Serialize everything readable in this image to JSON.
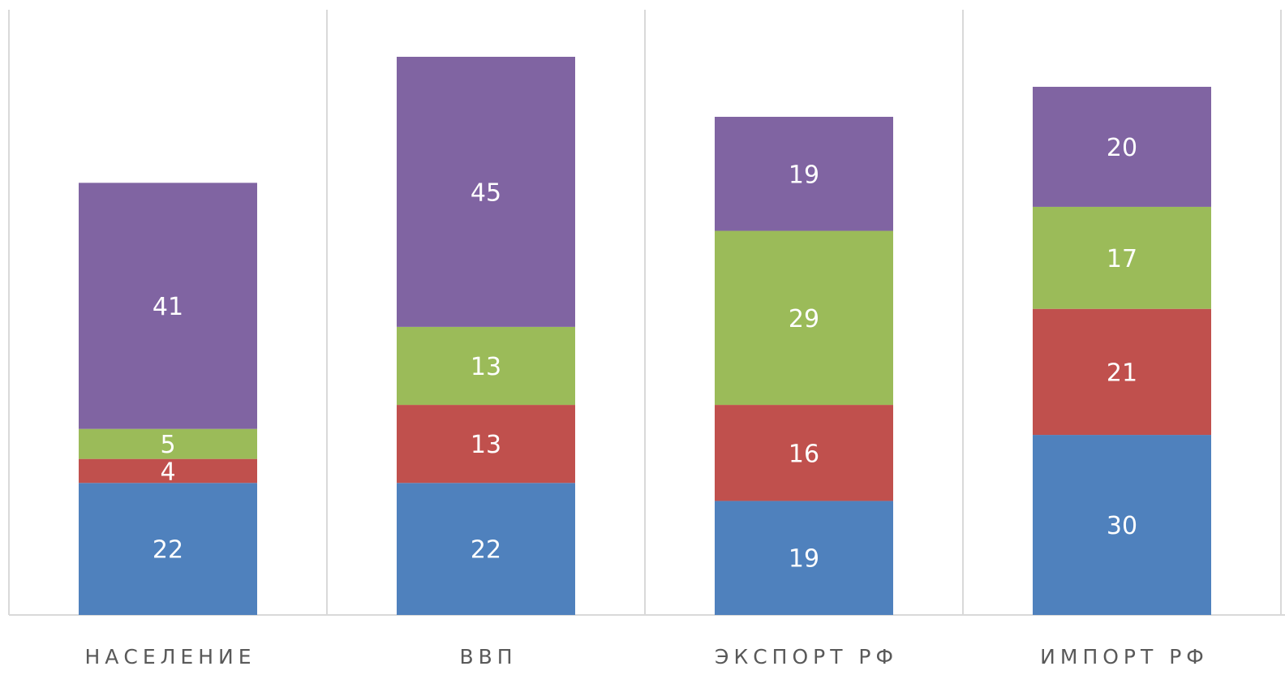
{
  "chart_data": {
    "type": "stacked_bar",
    "categories": [
      "НАСЕЛЕНИЕ",
      "ВВП",
      "ЭКСПОРТ РФ",
      "ИМПОРТ РФ"
    ],
    "series": [
      {
        "color": "#4f81bd",
        "values": [
          22,
          22,
          19,
          30
        ]
      },
      {
        "color": "#c0504d",
        "values": [
          4,
          13,
          16,
          21
        ]
      },
      {
        "color": "#9bbb59",
        "values": [
          5,
          13,
          29,
          17
        ]
      },
      {
        "color": "#8064a2",
        "values": [
          41,
          45,
          19,
          20
        ]
      }
    ]
  }
}
